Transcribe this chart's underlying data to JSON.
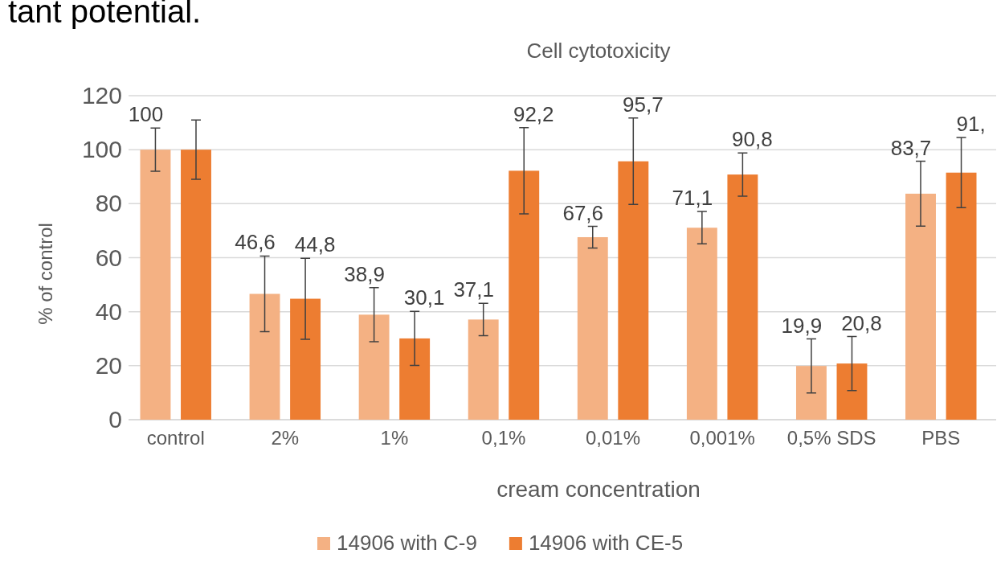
{
  "chart_data": {
    "type": "bar",
    "title": "Cell cytotoxicity",
    "xlabel": "cream concentration",
    "ylabel": "% of control",
    "annotations": [
      "tant potential."
    ],
    "categories": [
      "control",
      "2%",
      "1%",
      "0,1%",
      "0,01%",
      "0,001%",
      "0,5% SDS",
      "PBS"
    ],
    "series": [
      {
        "name": "14906 with C-9",
        "color": "#f4b183",
        "values": [
          100,
          46.6,
          38.9,
          37.1,
          67.6,
          71.1,
          19.9,
          83.7
        ],
        "errors": [
          8,
          14,
          10,
          6,
          4,
          6,
          10,
          12
        ],
        "value_labels": [
          "100",
          "46,6",
          "38,9",
          "37,1",
          "67,6",
          "71,1",
          "19,9",
          "83,7"
        ]
      },
      {
        "name": "14906 with CE-5",
        "color": "#ed7d31",
        "values": [
          100,
          44.8,
          30.1,
          92.2,
          95.7,
          90.8,
          20.8,
          91.5
        ],
        "errors": [
          11,
          15,
          10,
          16,
          16,
          8,
          10,
          13
        ],
        "value_labels": [
          null,
          "44,8",
          "30,1",
          "92,2",
          "95,7",
          "90,8",
          "20,8",
          "91,"
        ]
      }
    ],
    "ylim": [
      0,
      120
    ],
    "yticks": [
      0,
      20,
      40,
      60,
      80,
      100,
      120
    ],
    "grid": "y",
    "legend": "bottom"
  }
}
